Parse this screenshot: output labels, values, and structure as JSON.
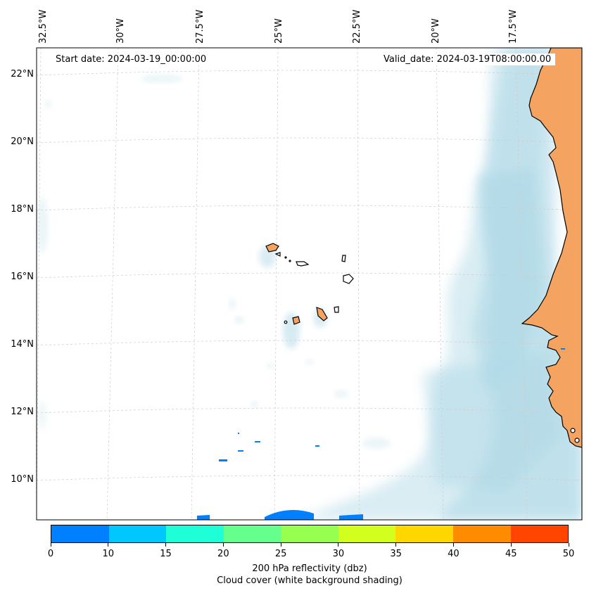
{
  "map": {
    "start_date": "Start date: 2024-03-19_00:00:00",
    "valid_date": "Valid_date: 2024-03-19T08:00:00.00",
    "lon_labels": [
      "32.5°W",
      "30°W",
      "27.5°W",
      "25°W",
      "22.5°W",
      "20°W",
      "17.5°W"
    ],
    "lat_labels": [
      "22°N",
      "20°N",
      "18°N",
      "16°N",
      "14°N",
      "12°N",
      "10°N"
    ],
    "land_color": "#f4a460",
    "cloud_color": "#add8e6",
    "region": "Cabo Verde islands and West African coast (Senegal, Mauritania, Gambia, Guinea-Bissau)"
  },
  "colorbar": {
    "ticks": [
      "0",
      "10",
      "15",
      "20",
      "25",
      "30",
      "35",
      "40",
      "45",
      "50"
    ],
    "colors": [
      "#0080ff",
      "#00c8ff",
      "#1effd8",
      "#64ff8c",
      "#96ff50",
      "#d2ff1e",
      "#ffd700",
      "#ff8c00",
      "#ff4500"
    ],
    "label_line1": "200 hPa reflectivity (dbz)",
    "label_line2": "Cloud cover (white background shading)"
  }
}
